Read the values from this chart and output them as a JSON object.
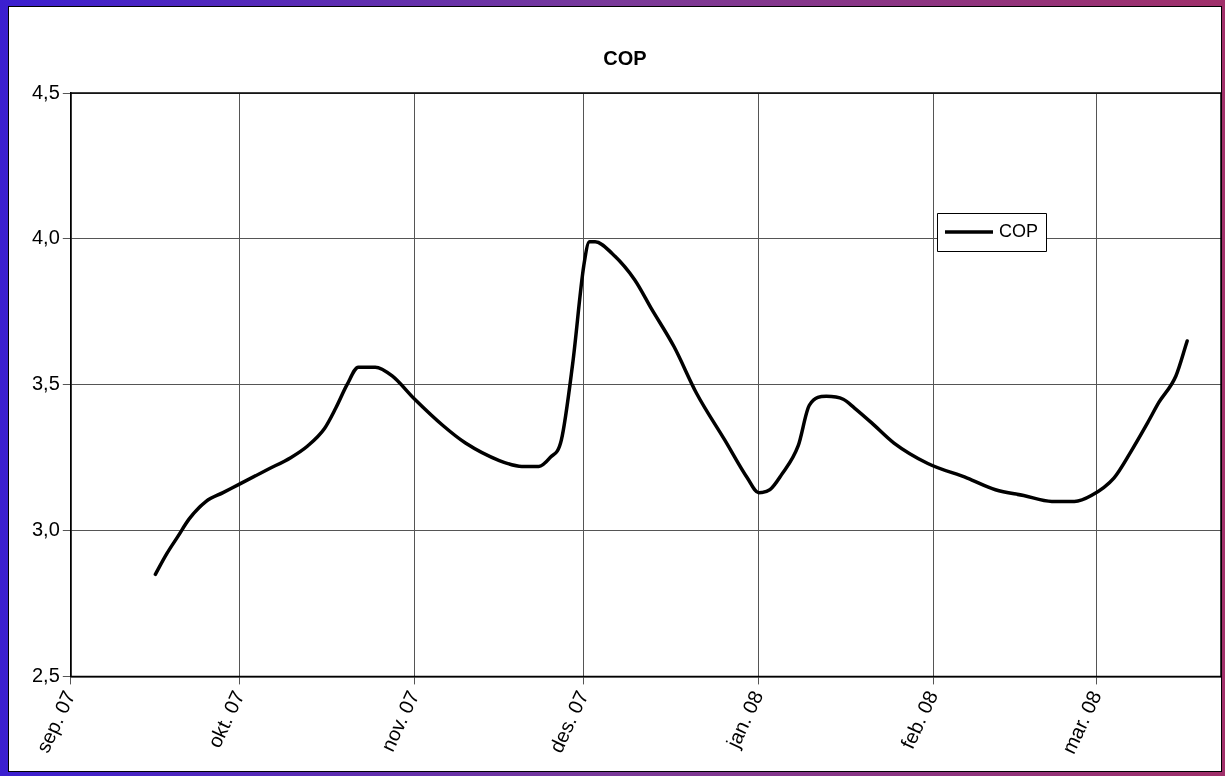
{
  "chart_data": {
    "type": "line",
    "title": "COP",
    "x": [
      "2007-09-16",
      "2007-09-18",
      "2007-09-20",
      "2007-09-22",
      "2007-09-25",
      "2007-09-28",
      "2007-10-01",
      "2007-10-06",
      "2007-10-10",
      "2007-10-13",
      "2007-10-16",
      "2007-10-18",
      "2007-10-20",
      "2007-10-22",
      "2007-10-25",
      "2007-10-28",
      "2007-11-01",
      "2007-11-06",
      "2007-11-10",
      "2007-11-16",
      "2007-11-20",
      "2007-11-23",
      "2007-11-25",
      "2007-11-27",
      "2007-11-29",
      "2007-12-01",
      "2007-12-02",
      "2007-12-03",
      "2007-12-06",
      "2007-12-10",
      "2007-12-13",
      "2007-12-17",
      "2007-12-21",
      "2007-12-26",
      "2007-12-30",
      "2008-01-01",
      "2008-01-03",
      "2008-01-05",
      "2008-01-08",
      "2008-01-10",
      "2008-01-13",
      "2008-01-16",
      "2008-01-18",
      "2008-01-21",
      "2008-01-25",
      "2008-01-31",
      "2008-02-07",
      "2008-02-12",
      "2008-02-17",
      "2008-02-22",
      "2008-02-26",
      "2008-02-29",
      "2008-03-04",
      "2008-03-07",
      "2008-03-10",
      "2008-03-12",
      "2008-03-15",
      "2008-03-17"
    ],
    "series": [
      {
        "name": "COP",
        "color": "#000000",
        "values": [
          2.85,
          2.92,
          2.98,
          3.04,
          3.1,
          3.13,
          3.16,
          3.21,
          3.25,
          3.29,
          3.35,
          3.42,
          3.5,
          3.56,
          3.56,
          3.53,
          3.45,
          3.36,
          3.3,
          3.24,
          3.22,
          3.22,
          3.25,
          3.31,
          3.57,
          3.91,
          3.99,
          3.99,
          3.95,
          3.86,
          3.76,
          3.63,
          3.47,
          3.31,
          3.18,
          3.13,
          3.14,
          3.19,
          3.29,
          3.43,
          3.46,
          3.45,
          3.42,
          3.37,
          3.3,
          3.23,
          3.18,
          3.14,
          3.12,
          3.1,
          3.1,
          3.12,
          3.18,
          3.27,
          3.37,
          3.44,
          3.53,
          3.65
        ]
      }
    ],
    "xlim": [
      "2007-09",
      "2008-03-23"
    ],
    "xticks": [
      {
        "value": "2007-09",
        "label": "sep. 07"
      },
      {
        "value": "2007-10",
        "label": "okt. 07"
      },
      {
        "value": "2007-11",
        "label": "nov. 07"
      },
      {
        "value": "2007-12",
        "label": "des. 07"
      },
      {
        "value": "2008-01",
        "label": "jan. 08"
      },
      {
        "value": "2008-02",
        "label": "feb. 08"
      },
      {
        "value": "2008-03",
        "label": "mar. 08"
      }
    ],
    "ylim": [
      2.5,
      4.5
    ],
    "yticks": [
      {
        "value": 2.5,
        "label": "2,5"
      },
      {
        "value": 3.0,
        "label": "3,0"
      },
      {
        "value": 3.5,
        "label": "3,5"
      },
      {
        "value": 4.0,
        "label": "4,0"
      },
      {
        "value": 4.5,
        "label": "4,5"
      }
    ],
    "grid": true,
    "legend": "top right",
    "marker": "none",
    "line_style": "solid"
  }
}
